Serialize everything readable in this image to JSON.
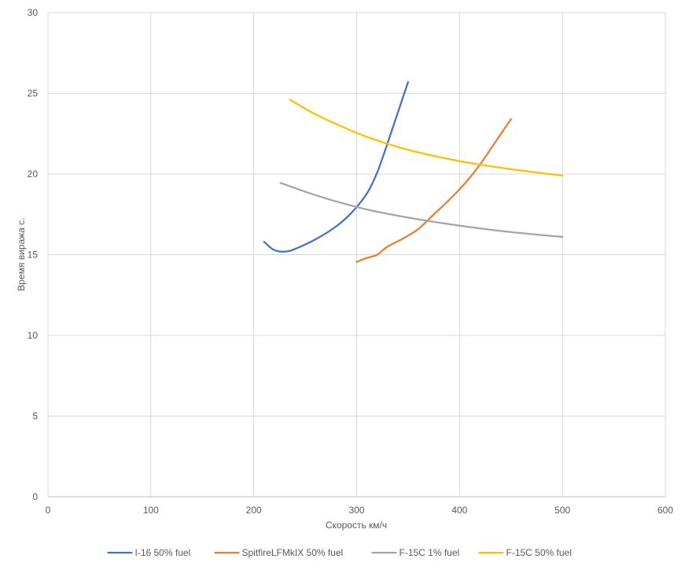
{
  "chart_data": {
    "type": "line",
    "title": "",
    "xlabel": "Скорость км/ч",
    "ylabel": "Время виража с.",
    "xlim": [
      0,
      600
    ],
    "ylim": [
      0,
      30
    ],
    "x_ticks": [
      0,
      100,
      200,
      300,
      400,
      500,
      600
    ],
    "y_ticks": [
      0,
      5,
      10,
      15,
      20,
      25,
      30
    ],
    "grid": true,
    "legend_position": "bottom",
    "series": [
      {
        "name": "I-16 50% fuel",
        "color": "#4472C4",
        "points": [
          [
            210,
            15.8
          ],
          [
            218,
            15.35
          ],
          [
            225,
            15.2
          ],
          [
            232,
            15.2
          ],
          [
            240,
            15.35
          ],
          [
            260,
            15.95
          ],
          [
            280,
            16.75
          ],
          [
            295,
            17.6
          ],
          [
            310,
            18.8
          ],
          [
            320,
            20.1
          ],
          [
            330,
            21.9
          ],
          [
            340,
            23.8
          ],
          [
            350,
            25.7
          ]
        ]
      },
      {
        "name": "SpitfireLFMkIX 50% fuel",
        "color": "#ED7D31",
        "points": [
          [
            300,
            14.55
          ],
          [
            310,
            14.8
          ],
          [
            320,
            15.0
          ],
          [
            330,
            15.5
          ],
          [
            345,
            16.0
          ],
          [
            360,
            16.6
          ],
          [
            375,
            17.5
          ],
          [
            390,
            18.4
          ],
          [
            405,
            19.4
          ],
          [
            420,
            20.6
          ],
          [
            435,
            22.0
          ],
          [
            450,
            23.4
          ]
        ]
      },
      {
        "name": "F-15C 1% fuel",
        "color": "#A5A5A5",
        "points": [
          [
            226,
            19.45
          ],
          [
            250,
            18.9
          ],
          [
            280,
            18.3
          ],
          [
            310,
            17.8
          ],
          [
            350,
            17.3
          ],
          [
            400,
            16.8
          ],
          [
            450,
            16.4
          ],
          [
            500,
            16.1
          ]
        ]
      },
      {
        "name": "F-15C 50% fuel",
        "color": "#FFC000",
        "points": [
          [
            235,
            24.6
          ],
          [
            260,
            23.7
          ],
          [
            280,
            23.1
          ],
          [
            310,
            22.3
          ],
          [
            350,
            21.5
          ],
          [
            400,
            20.8
          ],
          [
            450,
            20.3
          ],
          [
            500,
            19.9
          ]
        ]
      }
    ]
  }
}
